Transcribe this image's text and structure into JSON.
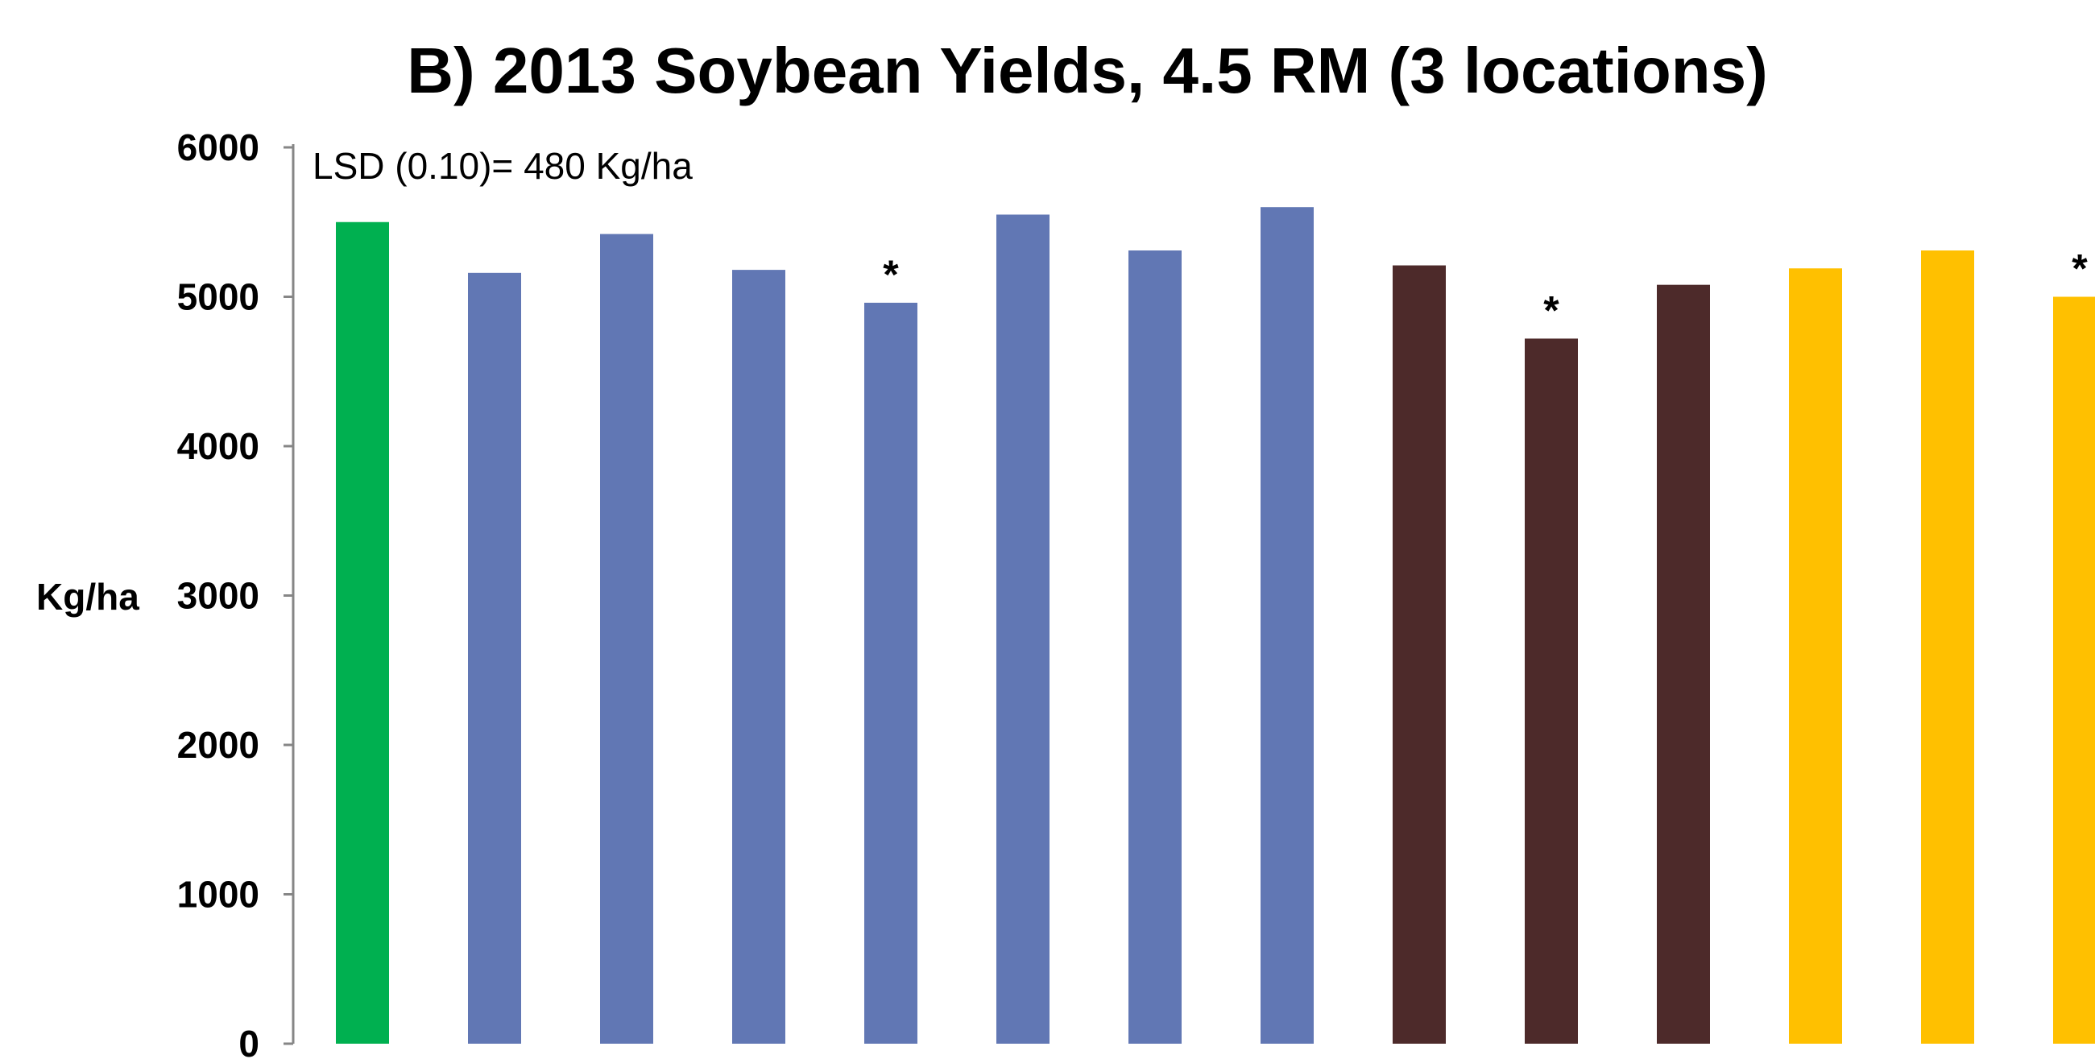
{
  "chart_data": {
    "type": "bar",
    "title": "B) 2013 Soybean Yields, 4.5 RM (3 locations)",
    "xlabel": "",
    "ylabel": "Kg/ha",
    "ylim": [
      0,
      6000
    ],
    "yticks": [
      "0",
      "1000",
      "2000",
      "3000",
      "4000",
      "5000",
      "6000"
    ],
    "grid": false,
    "annotation": "LSD (0.10)= 480 Kg/ha",
    "values": [
      5500,
      5160,
      5420,
      5180,
      4960,
      5550,
      5310,
      5600,
      5210,
      4720,
      5080,
      5190,
      5310,
      5000
    ],
    "colors": [
      "#00b050",
      "#6177b4",
      "#6177b4",
      "#6177b4",
      "#6177b4",
      "#6177b4",
      "#6177b4",
      "#6177b4",
      "#4d2a2a",
      "#4d2a2a",
      "#4d2a2a",
      "#ffc000",
      "#ffc000",
      "#ffc000"
    ],
    "markers": [
      "",
      "",
      "",
      "",
      "*",
      "",
      "",
      "",
      "",
      "*",
      "",
      "",
      "",
      "*"
    ]
  }
}
